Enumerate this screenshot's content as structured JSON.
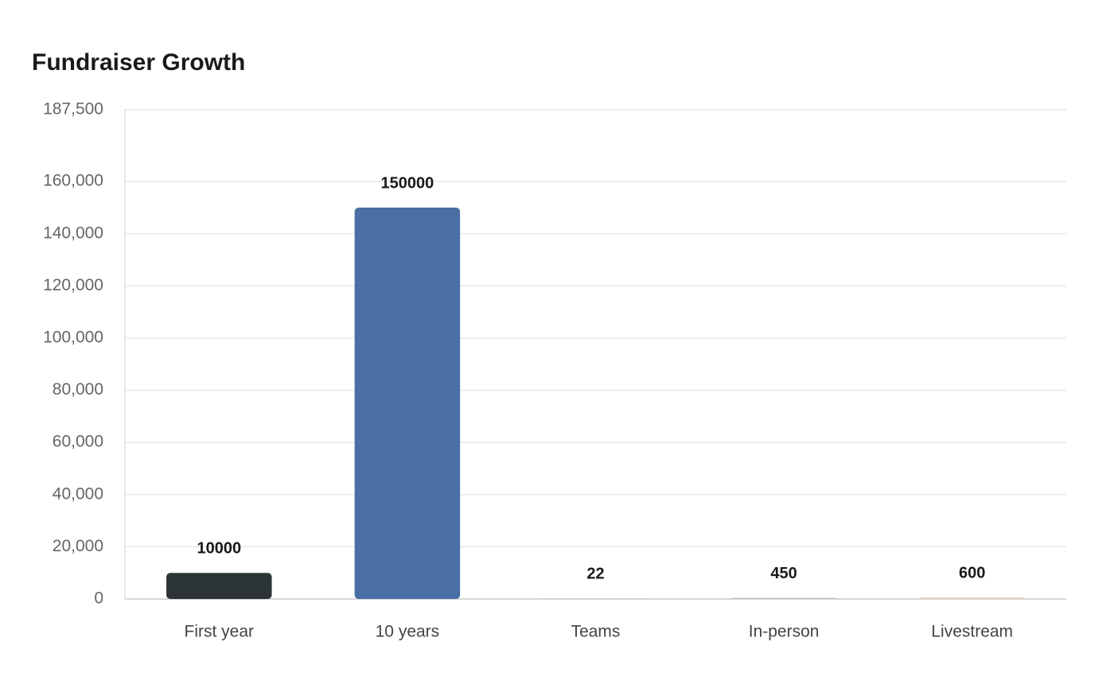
{
  "chart_data": {
    "type": "bar",
    "title": "Fundraiser Growth",
    "categories": [
      "First year",
      "10 years",
      "Teams",
      "In-person",
      "Livestream"
    ],
    "values": [
      10000,
      150000,
      22,
      450,
      600
    ],
    "colors": [
      "#2d3436",
      "#4a6fa5",
      "#6b93c9",
      "#c9c6c2",
      "#e6d5c3"
    ],
    "ylim": [
      0,
      187500
    ],
    "yticks": [
      0,
      {
        "value": 20000,
        "label": "20,000"
      },
      {
        "value": 40000,
        "label": "40,000"
      },
      {
        "value": 60000,
        "label": "60,000"
      },
      {
        "value": 80000,
        "label": "80,000"
      },
      {
        "value": 100000,
        "label": "100,000"
      },
      {
        "value": 120000,
        "label": "120,000"
      },
      {
        "value": 140000,
        "label": "140,000"
      },
      {
        "value": 160000,
        "label": "160,000"
      },
      {
        "value": 187500,
        "label": "187,500"
      }
    ],
    "grid": true
  }
}
